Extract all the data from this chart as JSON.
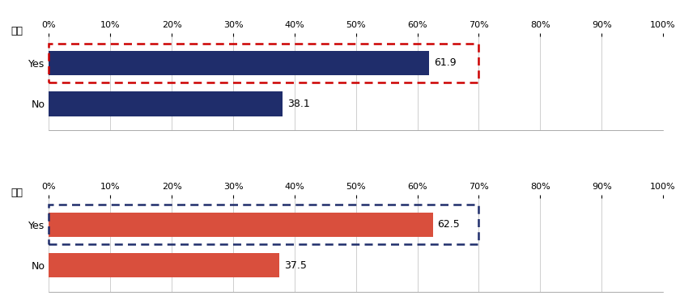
{
  "chart1_label": "父親",
  "chart2_label": "母親",
  "categories": [
    "Yes",
    "No"
  ],
  "chart1_values": [
    61.9,
    38.1
  ],
  "chart2_values": [
    62.5,
    37.5
  ],
  "bar_color1": "#1f2d6b",
  "bar_color2": "#d94f3d",
  "highlight_rect1_color": "#cc0000",
  "highlight_rect2_color": "#1f2d6b",
  "xlim": [
    0,
    100
  ],
  "xticks": [
    0,
    10,
    20,
    30,
    40,
    50,
    60,
    70,
    80,
    90,
    100
  ],
  "xticklabels": [
    "0%",
    "10%",
    "20%",
    "30%",
    "40%",
    "50%",
    "60%",
    "70%",
    "80%",
    "90%",
    "100%"
  ],
  "bar_height": 0.6,
  "value_fontsize": 9,
  "tick_fontsize": 8,
  "label_fontsize": 9,
  "axis_label_fontsize": 9,
  "grid_color": "#bbbbbb",
  "spine_color": "#888888",
  "text_color": "#000000"
}
